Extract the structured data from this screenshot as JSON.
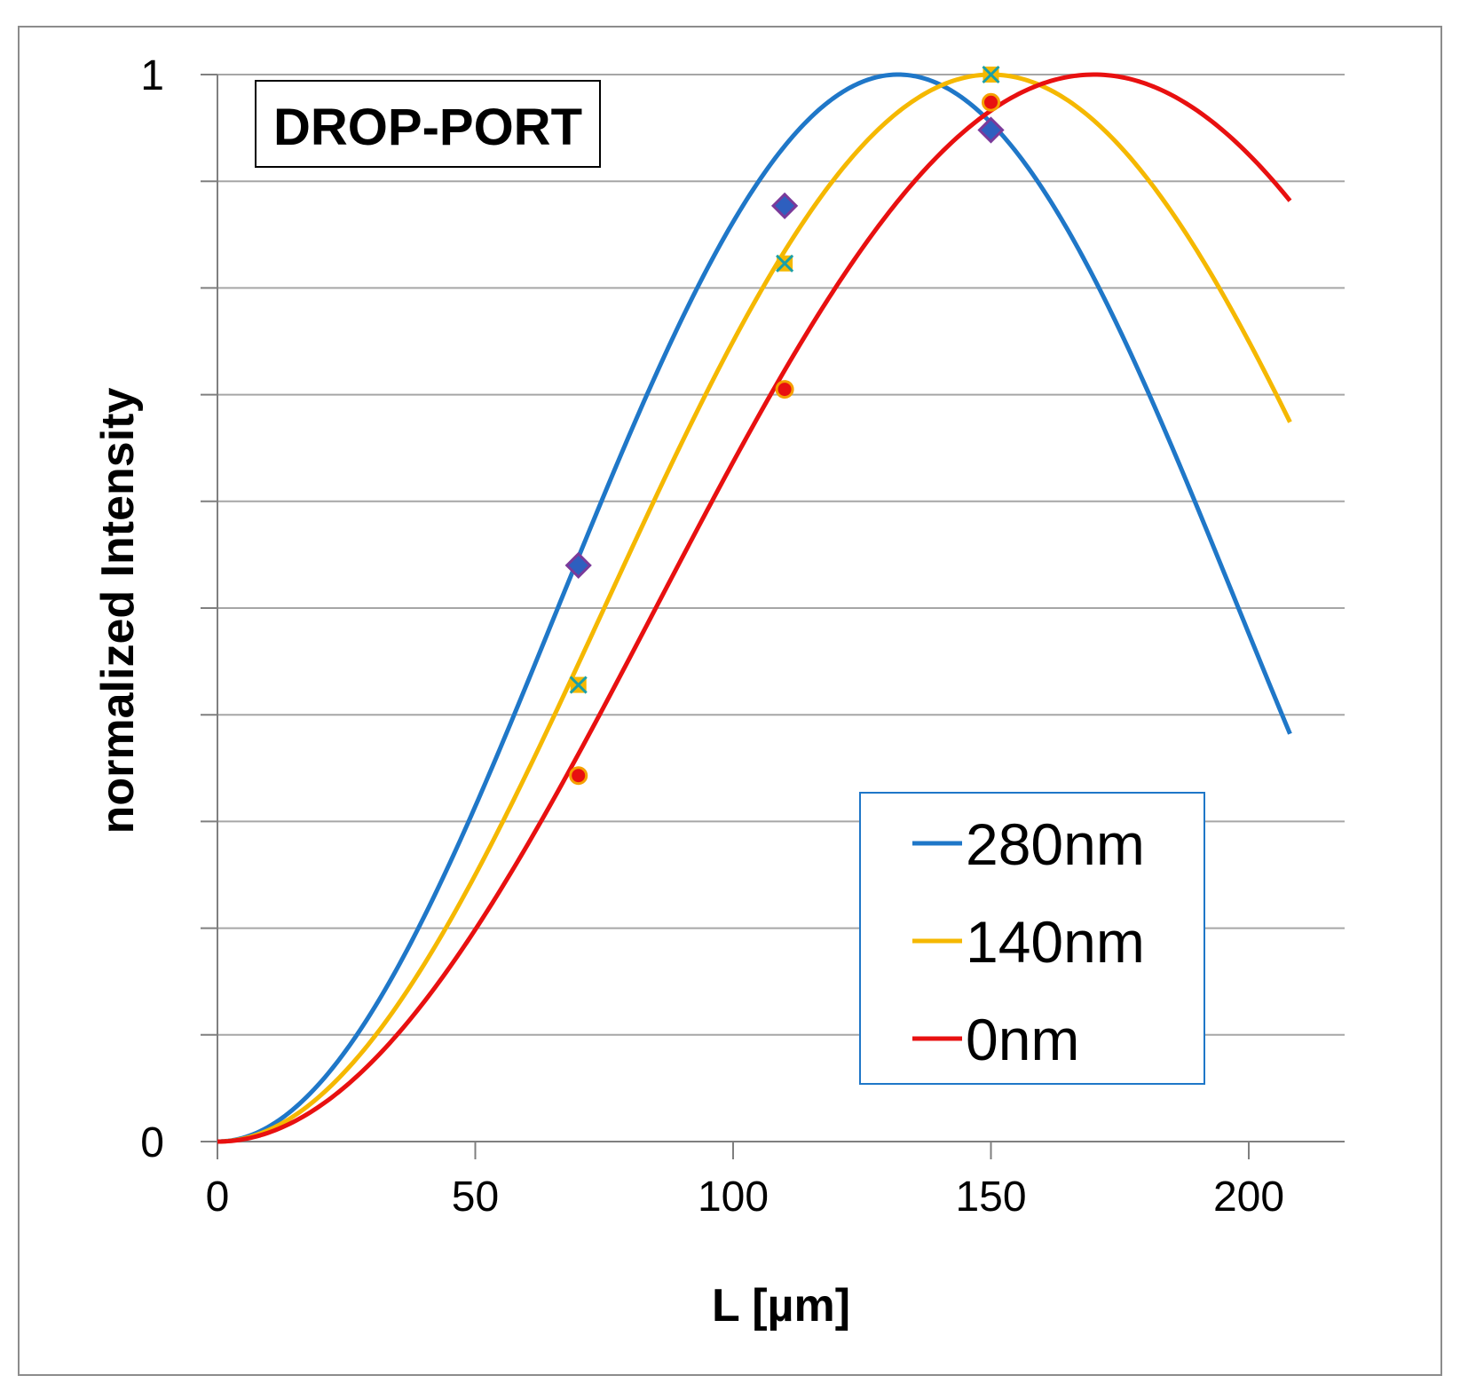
{
  "chart_data": {
    "type": "line",
    "title": "",
    "annotation": "DROP-PORT",
    "xlabel": "L [µm]",
    "ylabel": "normalized Intensity",
    "xlim": [
      0,
      210
    ],
    "ylim": [
      0,
      1
    ],
    "x_ticks": [
      0,
      50,
      100,
      150,
      200
    ],
    "x_tick_labels": [
      "0",
      "50",
      "100",
      "150",
      "200"
    ],
    "y_tick_labels": [
      {
        "value": 0,
        "label": "0"
      },
      {
        "value": 1,
        "label": "1"
      }
    ],
    "y_gridlines": [
      0.1,
      0.2,
      0.3,
      0.4,
      0.5,
      0.6,
      0.7,
      0.8,
      0.9,
      1.0
    ],
    "grid": true,
    "legend": {
      "position": "bottom-right",
      "entries": [
        "280nm",
        "140nm",
        "0nm"
      ]
    },
    "series": [
      {
        "name": "280nm",
        "color": "#1f77c8",
        "marker": "diamond",
        "marker_color": "#3a4fbf",
        "curve_model": "sin^2(pi*L/(2*Lc))",
        "coupling_length": 132,
        "end_x": 208,
        "x": [
          0,
          10,
          20,
          30,
          40,
          50,
          60,
          70,
          80,
          90,
          100,
          110,
          120,
          132,
          140,
          150,
          160,
          170,
          180,
          190,
          200,
          208
        ],
        "values": [
          0,
          0.014,
          0.056,
          0.123,
          0.211,
          0.314,
          0.426,
          0.541,
          0.651,
          0.752,
          0.838,
          0.91,
          0.962,
          1.0,
          0.991,
          0.955,
          0.887,
          0.79,
          0.68,
          0.556,
          0.425,
          0.39
        ],
        "points": [
          {
            "x": 70,
            "y": 0.54
          },
          {
            "x": 110,
            "y": 0.877
          },
          {
            "x": 150,
            "y": 0.948
          }
        ]
      },
      {
        "name": "140nm",
        "color": "#f5b800",
        "marker": "x",
        "marker_color": "#1a9fa8",
        "curve_model": "sin^2(pi*L/(2*Lc))",
        "coupling_length": 150,
        "end_x": 208,
        "x": [
          0,
          10,
          20,
          30,
          40,
          50,
          60,
          70,
          80,
          90,
          100,
          110,
          120,
          130,
          140,
          150,
          160,
          170,
          180,
          190,
          200,
          208
        ],
        "values": [
          0,
          0.011,
          0.043,
          0.095,
          0.165,
          0.25,
          0.345,
          0.448,
          0.552,
          0.655,
          0.75,
          0.835,
          0.905,
          0.957,
          0.989,
          1.0,
          0.989,
          0.957,
          0.905,
          0.835,
          0.75,
          0.672
        ],
        "points": [
          {
            "x": 70,
            "y": 0.428
          },
          {
            "x": 110,
            "y": 0.823
          },
          {
            "x": 150,
            "y": 1.0
          }
        ]
      },
      {
        "name": "0nm",
        "color": "#e81010",
        "marker": "circle",
        "marker_color": "#e81010",
        "curve_model": "sin^2(pi*L/(2*Lc))",
        "coupling_length": 170,
        "end_x": 208,
        "x": [
          0,
          10,
          20,
          30,
          40,
          50,
          60,
          70,
          80,
          90,
          100,
          110,
          120,
          130,
          140,
          150,
          160,
          170,
          180,
          190,
          200,
          208
        ],
        "values": [
          0,
          0.009,
          0.034,
          0.074,
          0.129,
          0.197,
          0.274,
          0.359,
          0.45,
          0.541,
          0.631,
          0.716,
          0.794,
          0.863,
          0.921,
          0.959,
          0.99,
          1.0,
          0.991,
          0.966,
          0.921,
          0.881
        ],
        "points": [
          {
            "x": 70,
            "y": 0.343
          },
          {
            "x": 110,
            "y": 0.705
          },
          {
            "x": 150,
            "y": 0.974
          }
        ]
      }
    ]
  }
}
